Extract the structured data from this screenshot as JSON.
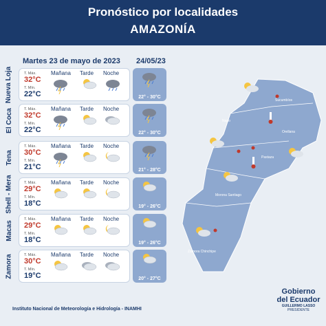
{
  "header": {
    "title": "Pronóstico por localidades",
    "region": "AMAZONÍA"
  },
  "dates": {
    "main": "Martes 23 de mayo de 2023",
    "next": "24/05/23"
  },
  "labels": {
    "tmax": "T. Máx.",
    "tmin": "T. Mín.",
    "morning": "Mañana",
    "afternoon": "Tarde",
    "night": "Noche"
  },
  "cities": [
    {
      "name": "Nueva Loja",
      "tmax": "32°C",
      "tmin": "22°C",
      "next": "22° - 30°C",
      "icons": [
        "storm-cloud",
        "sun-cloud",
        "rain-cloud"
      ]
    },
    {
      "name": "El Coca",
      "tmax": "32°C",
      "tmin": "22°C",
      "next": "22° - 30°C",
      "icons": [
        "storm-cloud",
        "sun-cloud",
        "cloudy"
      ]
    },
    {
      "name": "Tena",
      "tmax": "30°C",
      "tmin": "21°C",
      "next": "21° - 28°C",
      "icons": [
        "storm-cloud",
        "sun-cloud",
        "moon-cloud"
      ]
    },
    {
      "name": "Shell - Mera",
      "tmax": "29°C",
      "tmin": "18°C",
      "next": "19° - 26°C",
      "icons": [
        "sun-cloud",
        "sun-cloud",
        "moon-cloud"
      ]
    },
    {
      "name": "Macas",
      "tmax": "29°C",
      "tmin": "18°C",
      "next": "19° - 26°C",
      "icons": [
        "sun-cloud",
        "sun-cloud",
        "moon-cloud"
      ]
    },
    {
      "name": "Zamora",
      "tmax": "30°C",
      "tmin": "19°C",
      "next": "20° - 27°C",
      "icons": [
        "sun-cloud",
        "cloudy",
        "cloudy"
      ]
    }
  ],
  "map": {
    "provinces": [
      "Sucumbíos",
      "Napo",
      "Orellana",
      "Pastaza",
      "Morona Santiago",
      "Zamora Chinchipe"
    ]
  },
  "footer": "Instituto Nacional de Meteorología e Hidrología - INAMHI",
  "logo": {
    "line1": "Gobierno",
    "line2": "del Ecuador",
    "line3": "GUILLERMO LASSO",
    "line4": "PRESIDENTE"
  },
  "colors": {
    "navy": "#1b3a6b",
    "map": "#8ea8cf",
    "max": "#c0392b"
  }
}
